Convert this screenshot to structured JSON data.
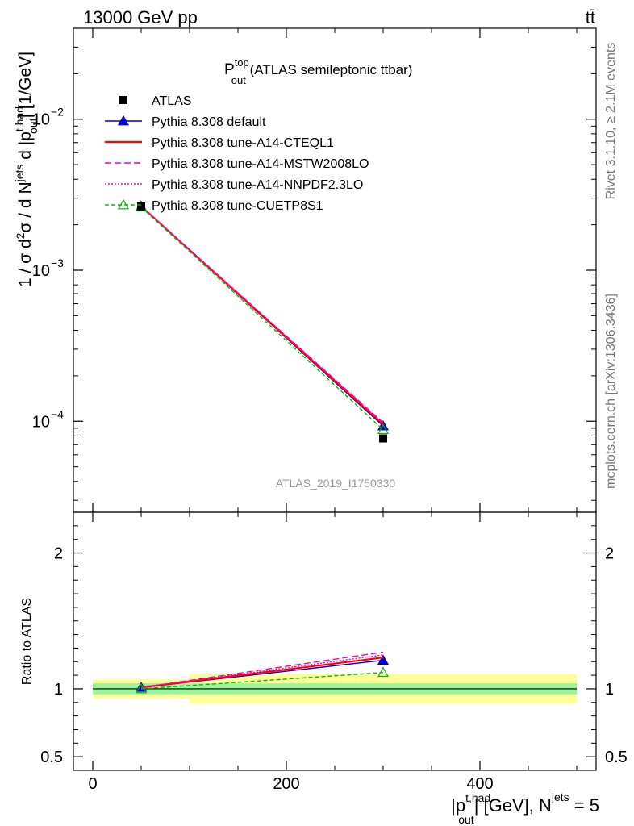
{
  "header": {
    "energy_label": "13000 GeV pp",
    "process_label": "tt̄"
  },
  "plot_title": {
    "main": "P",
    "sup": "top",
    "sub": "out",
    "rest": " (ATLAS semileptonic ttbar)"
  },
  "side_labels": {
    "rivet": "Rivet 3.1.10, ≥ 2.1M events",
    "mcplots": "mcplots.cern.ch [arXiv:1306.3436]"
  },
  "analysis_tag": "ATLAS_2019_I1750330",
  "y_axis_label": {
    "p1": "1 / σ d",
    "sup2": "2",
    "p2": "σ / d N",
    "sup_jets": "jets",
    "p3": " d |p",
    "sup_thad": "t,had",
    "sub_out": "out",
    "p4": "| [1/GeV]"
  },
  "ratio_y_label": "Ratio to ATLAS",
  "x_axis_label": {
    "p1": "|p",
    "sup_thad": "t,had",
    "sub_out": "out",
    "p2": "| [GeV], N",
    "sup_jets": "jets",
    "p3": " = 5"
  },
  "chart_data": {
    "type": "line",
    "x_edges": [
      0,
      100,
      500
    ],
    "x_centers": [
      50,
      300
    ],
    "xlim": [
      -20,
      520
    ],
    "ylim_main": [
      2.5e-05,
      0.04
    ],
    "ylim_ratio": [
      0.4,
      2.3
    ],
    "y_scale_main": "log",
    "x_ticks": [
      {
        "value": 0,
        "label": "0"
      },
      {
        "value": 200,
        "label": "200"
      },
      {
        "value": 400,
        "label": "400"
      }
    ],
    "y_ticks_main": [
      {
        "value": 0.0001,
        "base": "10",
        "exp": "−4"
      },
      {
        "value": 0.001,
        "base": "10",
        "exp": "−3"
      },
      {
        "value": 0.01,
        "base": "10",
        "exp": "−2"
      }
    ],
    "y_ticks_ratio": [
      {
        "value": 0.5,
        "label": "0.5"
      },
      {
        "value": 1,
        "label": "1"
      },
      {
        "value": 2,
        "label": "2"
      }
    ],
    "data": {
      "name": "ATLAS",
      "values": [
        0.00265,
        7.7e-05
      ],
      "ratio_band_stat": [
        [
          0.96,
          1.04
        ],
        [
          0.96,
          1.04
        ]
      ],
      "ratio_band_total": [
        [
          0.93,
          1.07
        ],
        [
          0.89,
          1.11
        ]
      ]
    },
    "series": [
      {
        "name": "Pythia 8.308 default",
        "color": "#0000cc",
        "dash": "",
        "marker": "triangle-filled",
        "values": [
          0.00265,
          9.3e-05
        ],
        "ratio": [
          1.01,
          1.21
        ]
      },
      {
        "name": "Pythia 8.308 tune-A14-CTEQL1",
        "color": "#ff0000",
        "dash": "",
        "marker": "none",
        "values": [
          0.00265,
          9.5e-05
        ],
        "ratio": [
          1.01,
          1.23
        ]
      },
      {
        "name": "Pythia 8.308 tune-A14-MSTW2008LO",
        "color": "#ff00aa",
        "dash": "8,4",
        "marker": "none",
        "values": [
          0.00265,
          9.8e-05
        ],
        "ratio": [
          1.01,
          1.27
        ]
      },
      {
        "name": "Pythia 8.308 tune-A14-NNPDF2.3LO",
        "color": "#ff00aa",
        "dash": "2,2",
        "marker": "none",
        "values": [
          0.00265,
          9.7e-05
        ],
        "ratio": [
          1.01,
          1.25
        ]
      },
      {
        "name": "Pythia 8.308 tune-CUETP8S1",
        "color": "#00bb00",
        "dash": "5,3",
        "marker": "triangle-open",
        "values": [
          0.00262,
          8.8e-05
        ],
        "ratio": [
          1.0,
          1.12
        ]
      }
    ]
  }
}
